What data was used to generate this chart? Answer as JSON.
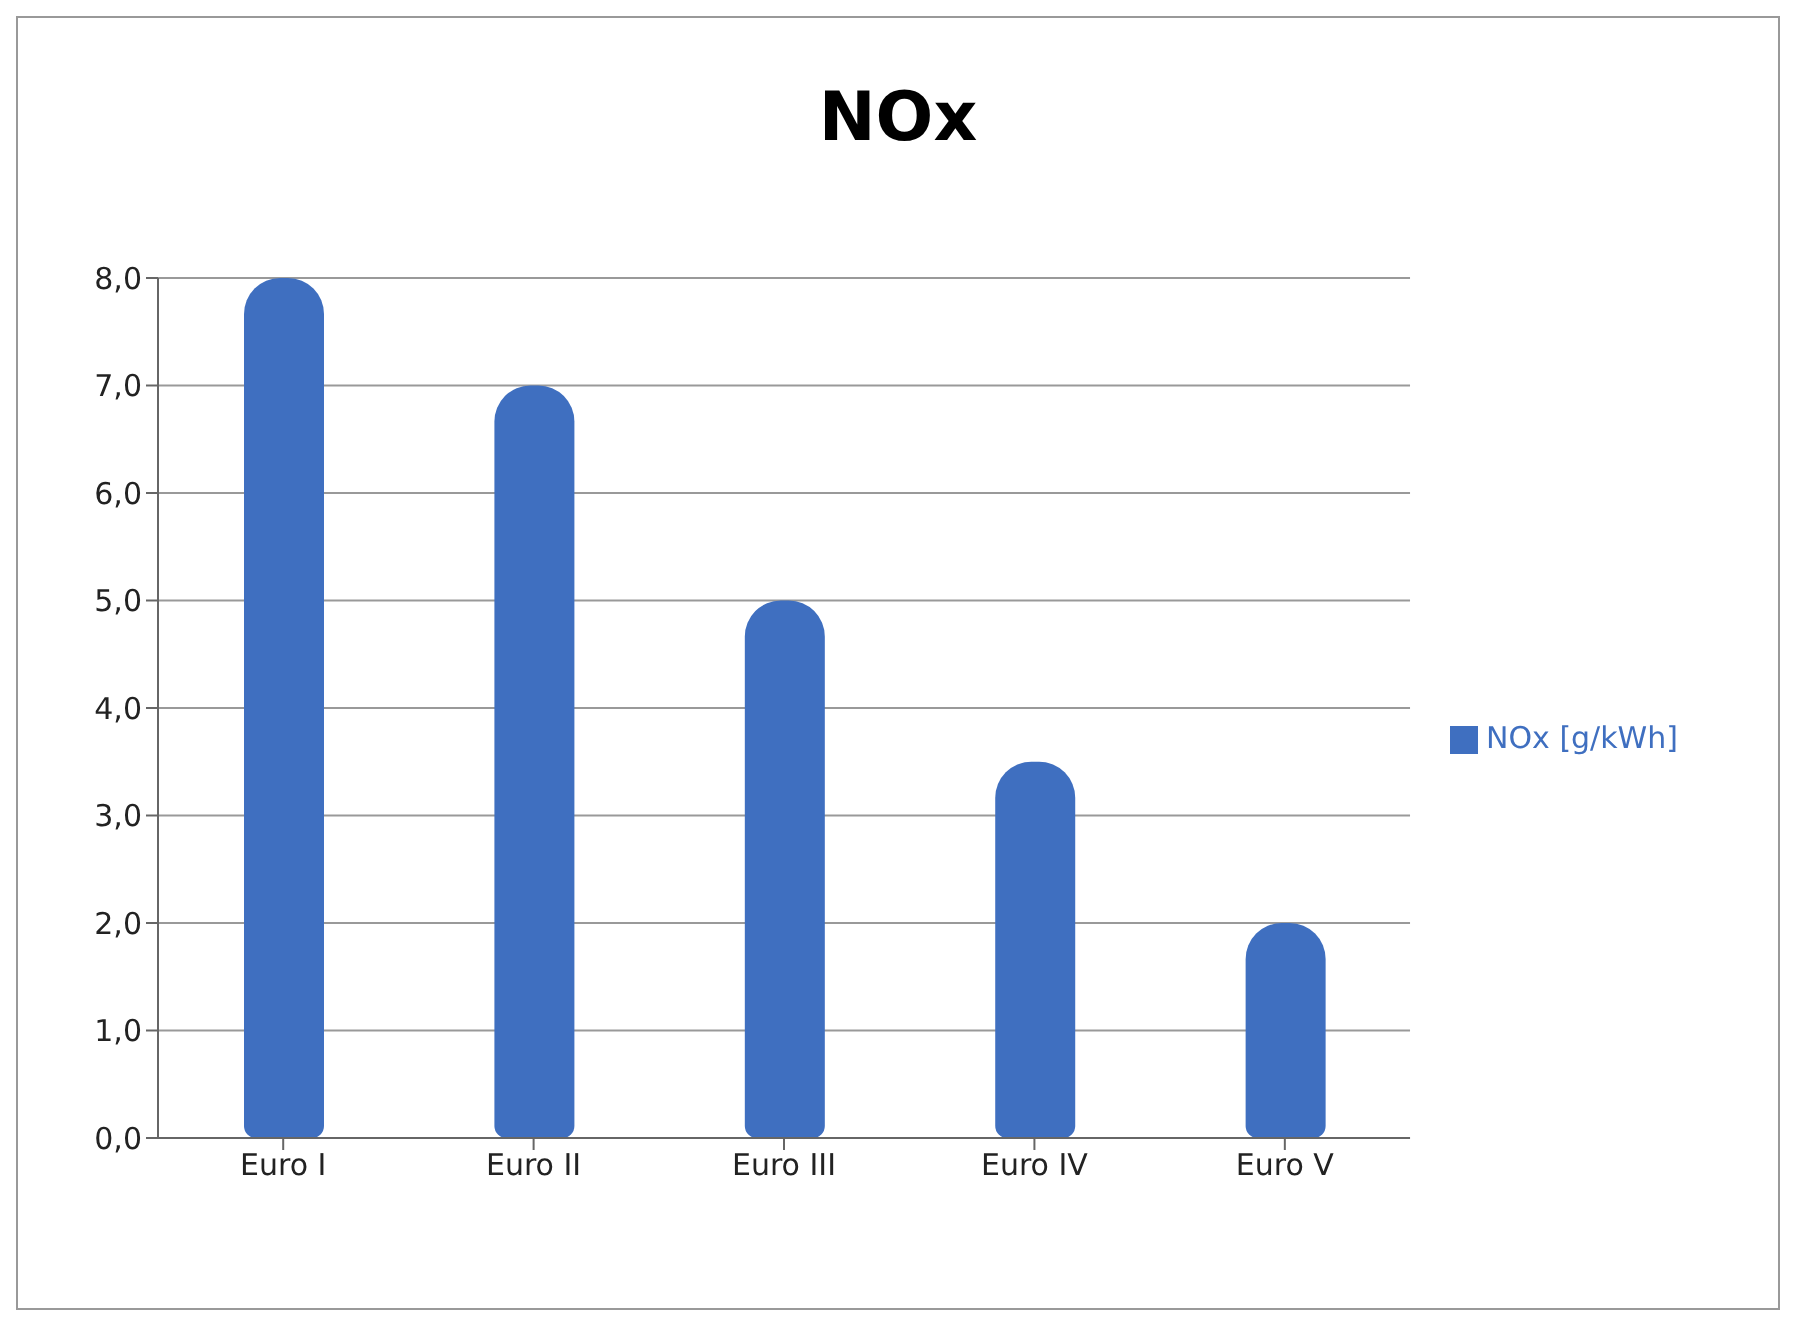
{
  "chart_data": {
    "type": "bar",
    "title": "NOx",
    "categories": [
      "Euro I",
      "Euro II",
      "Euro III",
      "Euro IV",
      "Euro V"
    ],
    "series": [
      {
        "name": "NOx [g/kWh]",
        "color": "#3f6fc0",
        "values": [
          8.0,
          7.0,
          5.0,
          3.5,
          2.0
        ]
      }
    ],
    "ylim": [
      0,
      8
    ],
    "yticks": [
      {
        "value": 0,
        "label": "0,0"
      },
      {
        "value": 1,
        "label": "1,0"
      },
      {
        "value": 2,
        "label": "2,0"
      },
      {
        "value": 3,
        "label": "3,0"
      },
      {
        "value": 4,
        "label": "4,0"
      },
      {
        "value": 5,
        "label": "5,0"
      },
      {
        "value": 6,
        "label": "6,0"
      },
      {
        "value": 7,
        "label": "7,0"
      },
      {
        "value": 8,
        "label": "8,0"
      }
    ],
    "grid": "y",
    "legend": "right"
  }
}
